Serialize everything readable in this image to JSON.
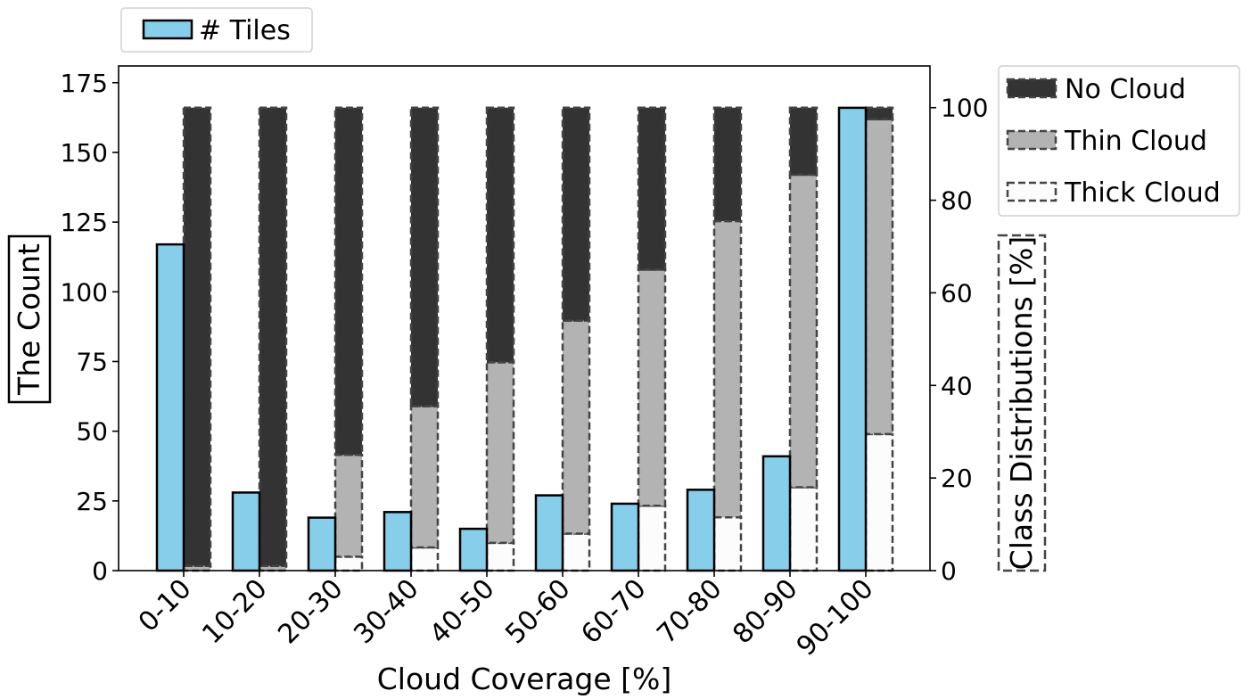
{
  "chart_data": {
    "type": "bar",
    "xlabel": "Cloud Coverage [%]",
    "ylabel_left": "The Count",
    "ylabel_right": "Class Distributions [%]",
    "ylim_left": [
      0,
      181
    ],
    "ylim_right": [
      0,
      109
    ],
    "yticks_left": [
      0,
      25,
      50,
      75,
      100,
      125,
      150,
      175
    ],
    "yticks_right": [
      0,
      20,
      40,
      60,
      80,
      100
    ],
    "categories": [
      "0-10",
      "10-20",
      "20-30",
      "30-40",
      "40-50",
      "50-60",
      "60-70",
      "70-80",
      "80-90",
      "90-100"
    ],
    "tiles_series": {
      "name": "# Tiles",
      "values": [
        117,
        28,
        19,
        21,
        15,
        27,
        24,
        29,
        41,
        166
      ]
    },
    "class_series": [
      {
        "name": "Thick Cloud",
        "values": [
          0,
          0,
          3,
          5,
          6,
          8,
          14,
          11.5,
          18,
          29.5
        ]
      },
      {
        "name": "Thin Cloud",
        "values": [
          1,
          1,
          22,
          30.5,
          39,
          46,
          51,
          64,
          67.5,
          68
        ]
      },
      {
        "name": "No Cloud",
        "values": [
          99,
          99,
          75,
          64.5,
          55,
          46,
          35,
          24.5,
          14.5,
          2.5
        ]
      }
    ],
    "legend_left": {
      "position": "top-left",
      "entries": [
        "# Tiles"
      ]
    },
    "legend_right": {
      "position": "right-top",
      "entries": [
        "No Cloud",
        "Thin Cloud",
        "Thick Cloud"
      ]
    },
    "grid": false
  },
  "colors": {
    "tiles": "#87ceeb",
    "no_cloud": "#333333",
    "thin_cloud": "#b3b3b3",
    "thick_cloud": "#fcfcfc",
    "edge": "#000000",
    "dash_edge": "#444444"
  }
}
